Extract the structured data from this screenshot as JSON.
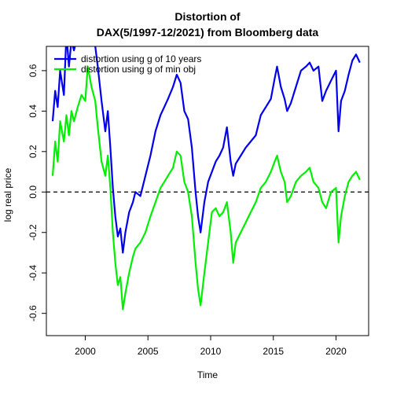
{
  "chart_data": {
    "type": "line",
    "title": "Distortion of",
    "subtitle": "DAX(5/1997-12/2021) from Bloomberg data",
    "xlabel": "Time",
    "ylabel": "log real price",
    "xlim": [
      1996.9,
      2022.6
    ],
    "ylim": [
      -0.71,
      0.72
    ],
    "xticks": [
      2000,
      2005,
      2010,
      2015,
      2020
    ],
    "xtick_labels": [
      "2000",
      "2005",
      "2010",
      "2015",
      "2020"
    ],
    "yticks": [
      -0.6,
      -0.4,
      -0.2,
      0.0,
      0.2,
      0.4,
      0.6
    ],
    "ytick_labels": [
      "-0.6",
      "-0.4",
      "-0.2",
      "0.0",
      "0.2",
      "0.4",
      "0.6"
    ],
    "reference_line": {
      "y": 0,
      "style": "dashed"
    },
    "legend": {
      "placement": "top-left"
    },
    "series": [
      {
        "name": "distortion using g of 10 years",
        "color": "#0000ee",
        "x": [
          1997.4,
          1997.6,
          1997.8,
          1998.0,
          1998.3,
          1998.5,
          1998.7,
          1998.9,
          1999.1,
          1999.4,
          1999.7,
          2000.0,
          2000.2,
          2000.5,
          2000.8,
          2001.0,
          2001.3,
          2001.6,
          2001.8,
          2002.0,
          2002.2,
          2002.4,
          2002.6,
          2002.8,
          2003.0,
          2003.2,
          2003.5,
          2003.8,
          2004.0,
          2004.4,
          2004.8,
          2005.2,
          2005.6,
          2006.0,
          2006.3,
          2006.6,
          2007.0,
          2007.3,
          2007.6,
          2007.9,
          2008.2,
          2008.5,
          2008.8,
          2009.0,
          2009.2,
          2009.5,
          2009.8,
          2010.1,
          2010.4,
          2010.7,
          2011.0,
          2011.3,
          2011.6,
          2011.8,
          2012.0,
          2012.4,
          2012.8,
          2013.2,
          2013.6,
          2014.0,
          2014.4,
          2014.8,
          2015.1,
          2015.3,
          2015.6,
          2015.9,
          2016.1,
          2016.4,
          2016.8,
          2017.2,
          2017.6,
          2017.9,
          2018.2,
          2018.6,
          2018.9,
          2019.2,
          2019.6,
          2020.0,
          2020.2,
          2020.4,
          2020.7,
          2021.0,
          2021.3,
          2021.6,
          2021.9
        ],
        "values": [
          0.35,
          0.5,
          0.42,
          0.6,
          0.48,
          0.78,
          0.62,
          0.75,
          0.7,
          0.78,
          0.85,
          0.8,
          0.95,
          0.78,
          0.72,
          0.62,
          0.45,
          0.3,
          0.4,
          0.22,
          0.02,
          -0.12,
          -0.22,
          -0.18,
          -0.3,
          -0.2,
          -0.1,
          -0.05,
          0.0,
          -0.02,
          0.08,
          0.18,
          0.3,
          0.38,
          0.42,
          0.46,
          0.52,
          0.58,
          0.54,
          0.4,
          0.36,
          0.22,
          0.0,
          -0.12,
          -0.2,
          -0.05,
          0.05,
          0.1,
          0.15,
          0.18,
          0.22,
          0.32,
          0.15,
          0.08,
          0.14,
          0.18,
          0.22,
          0.25,
          0.28,
          0.38,
          0.42,
          0.46,
          0.56,
          0.62,
          0.52,
          0.46,
          0.4,
          0.44,
          0.52,
          0.6,
          0.62,
          0.64,
          0.6,
          0.62,
          0.45,
          0.5,
          0.55,
          0.6,
          0.3,
          0.45,
          0.5,
          0.58,
          0.65,
          0.68,
          0.64
        ]
      },
      {
        "name": "distortion using g of min obj",
        "color": "#00ee00",
        "x": [
          1997.4,
          1997.6,
          1997.8,
          1998.0,
          1998.3,
          1998.5,
          1998.7,
          1998.9,
          1999.1,
          1999.4,
          1999.7,
          2000.0,
          2000.2,
          2000.5,
          2000.8,
          2001.0,
          2001.3,
          2001.6,
          2001.8,
          2002.0,
          2002.2,
          2002.4,
          2002.6,
          2002.8,
          2003.0,
          2003.2,
          2003.5,
          2003.8,
          2004.0,
          2004.4,
          2004.8,
          2005.2,
          2005.6,
          2006.0,
          2006.3,
          2006.6,
          2007.0,
          2007.3,
          2007.6,
          2007.9,
          2008.2,
          2008.5,
          2008.8,
          2009.0,
          2009.2,
          2009.5,
          2009.8,
          2010.1,
          2010.4,
          2010.7,
          2011.0,
          2011.3,
          2011.6,
          2011.8,
          2012.0,
          2012.4,
          2012.8,
          2013.2,
          2013.6,
          2014.0,
          2014.4,
          2014.8,
          2015.1,
          2015.3,
          2015.6,
          2015.9,
          2016.1,
          2016.4,
          2016.8,
          2017.2,
          2017.6,
          2017.9,
          2018.2,
          2018.6,
          2018.9,
          2019.2,
          2019.6,
          2020.0,
          2020.2,
          2020.4,
          2020.7,
          2021.0,
          2021.3,
          2021.6,
          2021.9
        ],
        "values": [
          0.08,
          0.25,
          0.15,
          0.35,
          0.25,
          0.38,
          0.28,
          0.4,
          0.35,
          0.42,
          0.48,
          0.45,
          0.62,
          0.52,
          0.45,
          0.32,
          0.15,
          0.08,
          0.18,
          0.02,
          -0.2,
          -0.35,
          -0.46,
          -0.42,
          -0.58,
          -0.5,
          -0.4,
          -0.32,
          -0.28,
          -0.25,
          -0.2,
          -0.12,
          -0.05,
          0.02,
          0.05,
          0.08,
          0.12,
          0.2,
          0.18,
          0.05,
          0.0,
          -0.12,
          -0.35,
          -0.48,
          -0.56,
          -0.4,
          -0.25,
          -0.1,
          -0.08,
          -0.12,
          -0.1,
          -0.05,
          -0.2,
          -0.35,
          -0.25,
          -0.2,
          -0.15,
          -0.1,
          -0.05,
          0.02,
          0.05,
          0.1,
          0.15,
          0.18,
          0.1,
          0.05,
          -0.05,
          -0.02,
          0.05,
          0.08,
          0.1,
          0.12,
          0.05,
          0.02,
          -0.05,
          -0.08,
          0.0,
          0.02,
          -0.25,
          -0.12,
          -0.02,
          0.05,
          0.08,
          0.1,
          0.06
        ]
      }
    ]
  }
}
